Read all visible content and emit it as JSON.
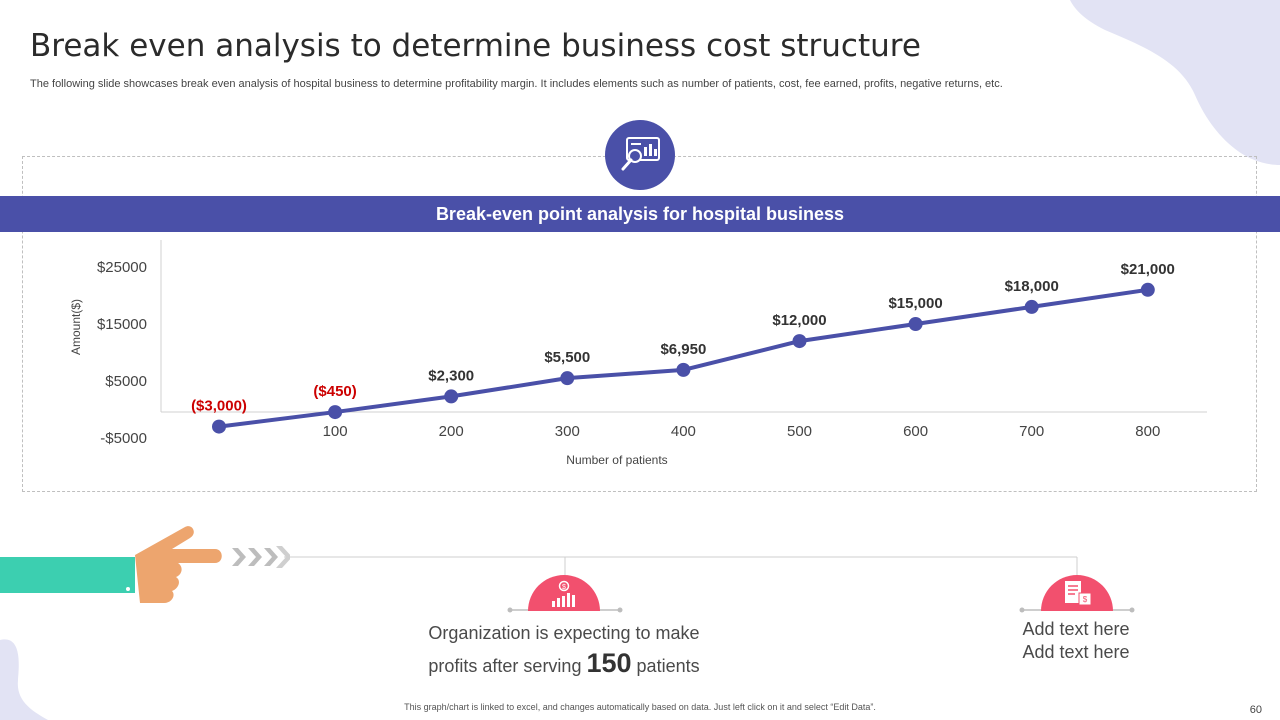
{
  "slide": {
    "title": "Break even analysis to determine business cost structure",
    "subtitle": "The following slide showcases break even analysis of hospital business to determine profitability margin. It includes elements such as number of patients, cost, fee earned, profits, negative returns, etc.",
    "chart_banner": "Break-even point analysis for hospital business",
    "footnote": "This graph/chart is linked to excel, and changes automatically based on data. Just left click on it and select “Edit Data”.",
    "page_number": "60",
    "message1": {
      "line1": "Organization is expecting to make",
      "line2_prefix": "profits after serving",
      "highlight": "150",
      "line2_suffix": "patients"
    },
    "message2": {
      "line1": "Add text here",
      "line2": "Add text here"
    }
  },
  "colors": {
    "accent": "#4a50a8",
    "negative": "#cc0000",
    "badge": "#f2506e",
    "teal": "#3ccfb0",
    "hand": "#eda56e"
  },
  "icons": {
    "chart_icon": "analytics-board-icon",
    "badge1": "growth-chart-icon",
    "badge2": "invoice-icon"
  },
  "chart_data": {
    "type": "line",
    "title": "Break-even point analysis for hospital business",
    "xlabel": "Number of patients",
    "ylabel": "Amount($)",
    "x": [
      0,
      100,
      200,
      300,
      400,
      500,
      600,
      700,
      800
    ],
    "x_tick_labels": [
      "100",
      "200",
      "300",
      "400",
      "500",
      "600",
      "700",
      "800"
    ],
    "y_tick_labels": [
      "$25000",
      "$15000",
      "$5000",
      "-$5000"
    ],
    "y_ticks": [
      25000,
      15000,
      5000,
      -5000
    ],
    "ylim": [
      -5000,
      25000
    ],
    "series": [
      {
        "values": [
          -3000,
          -450,
          2300,
          5500,
          6950,
          12000,
          15000,
          18000,
          21000
        ],
        "labels": [
          "($3,000)",
          "($450)",
          "$2,300",
          "$5,500",
          "$6,950",
          "$12,000",
          "$15,000",
          "$18,000",
          "$21,000"
        ]
      }
    ],
    "grid": false,
    "legend": "none"
  }
}
